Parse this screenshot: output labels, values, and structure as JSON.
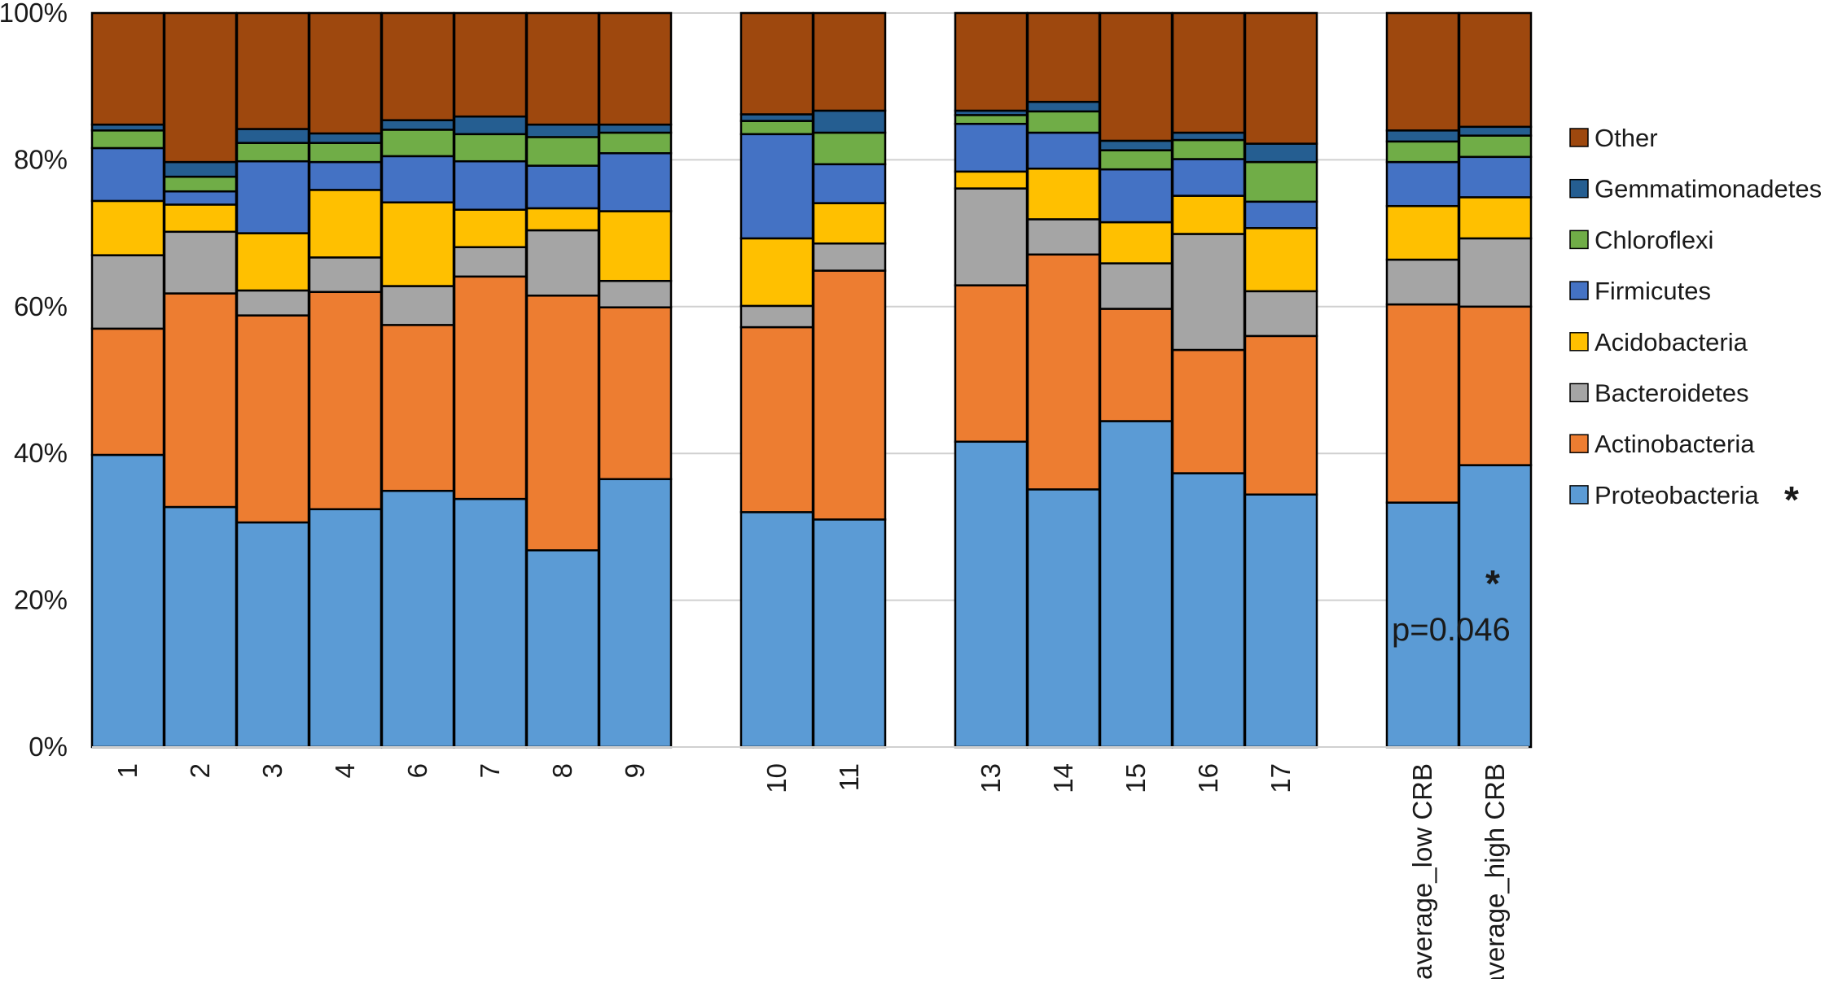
{
  "chart_data": {
    "type": "bar",
    "stacked": true,
    "normalized": true,
    "title": "",
    "xlabel": "",
    "ylabel": "",
    "ylim": [
      0,
      100
    ],
    "y_ticks": [
      0,
      20,
      40,
      60,
      80,
      100
    ],
    "y_tick_labels": [
      "0%",
      "20%",
      "40%",
      "60%",
      "80%",
      "100%"
    ],
    "gridlines": true,
    "legend_position": "right",
    "categories": [
      "1",
      "2",
      "3",
      "4",
      "6",
      "7",
      "8",
      "9",
      "10",
      "11",
      "13",
      "14",
      "15",
      "16",
      "17",
      "average_low CRB",
      "average_high CRB"
    ],
    "groups": [
      [
        "1",
        "2",
        "3",
        "4",
        "6",
        "7",
        "8",
        "9"
      ],
      [
        "10",
        "11"
      ],
      [
        "13",
        "14",
        "15",
        "16",
        "17"
      ],
      [
        "average_low CRB",
        "average_high CRB"
      ]
    ],
    "series": [
      {
        "name": "Proteobacteria",
        "color": "#5b9bd5",
        "values": [
          39.8,
          32.7,
          30.6,
          32.4,
          34.9,
          33.8,
          26.8,
          36.5,
          32.0,
          31.0,
          41.6,
          35.1,
          44.4,
          37.3,
          34.4,
          33.3,
          38.4
        ]
      },
      {
        "name": "Actinobacteria",
        "color": "#ed7d31",
        "values": [
          17.2,
          29.1,
          28.2,
          29.6,
          22.6,
          30.3,
          34.7,
          23.4,
          25.2,
          33.9,
          21.3,
          32.0,
          15.3,
          16.8,
          21.6,
          27.0,
          21.6
        ]
      },
      {
        "name": "Bacteroidetes",
        "color": "#a5a5a5",
        "values": [
          10.0,
          8.4,
          3.4,
          4.7,
          5.3,
          4.0,
          8.9,
          3.6,
          2.9,
          3.7,
          13.2,
          4.8,
          6.2,
          15.8,
          6.1,
          6.1,
          9.3
        ]
      },
      {
        "name": "Acidobacteria",
        "color": "#ffc000",
        "values": [
          7.4,
          3.7,
          7.8,
          9.2,
          11.4,
          5.1,
          3.0,
          9.5,
          9.2,
          5.5,
          2.3,
          6.9,
          5.6,
          5.2,
          8.6,
          7.3,
          5.6
        ]
      },
      {
        "name": "Firmicutes",
        "color": "#4472c4",
        "values": [
          7.2,
          1.8,
          9.8,
          3.8,
          6.3,
          6.6,
          5.8,
          7.9,
          14.2,
          5.3,
          6.5,
          4.9,
          7.2,
          5.0,
          3.6,
          6.0,
          5.5
        ]
      },
      {
        "name": "Chloroflexi",
        "color": "#70ad47",
        "values": [
          2.4,
          2.0,
          2.5,
          2.6,
          3.6,
          3.7,
          3.9,
          2.8,
          1.8,
          4.3,
          1.2,
          2.9,
          2.6,
          2.6,
          5.4,
          2.8,
          2.9
        ]
      },
      {
        "name": "Gemmatimonadetes",
        "color": "#255e91",
        "values": [
          0.8,
          2.0,
          1.9,
          1.3,
          1.3,
          2.4,
          1.7,
          1.1,
          0.9,
          3.0,
          0.6,
          1.3,
          1.3,
          1.0,
          2.5,
          1.5,
          1.2
        ]
      },
      {
        "name": "Other",
        "color": "#9e480e",
        "values": [
          15.2,
          20.3,
          15.8,
          16.4,
          14.6,
          14.1,
          15.2,
          15.2,
          13.8,
          13.3,
          13.3,
          12.1,
          17.4,
          16.3,
          17.8,
          16.0,
          15.5
        ]
      }
    ],
    "annotations": [
      {
        "text": "p=0.046",
        "near": "average_high CRB"
      },
      {
        "text": "*",
        "near": "average_high CRB"
      },
      {
        "text": "*",
        "near": "legend: Proteobacteria"
      }
    ]
  }
}
